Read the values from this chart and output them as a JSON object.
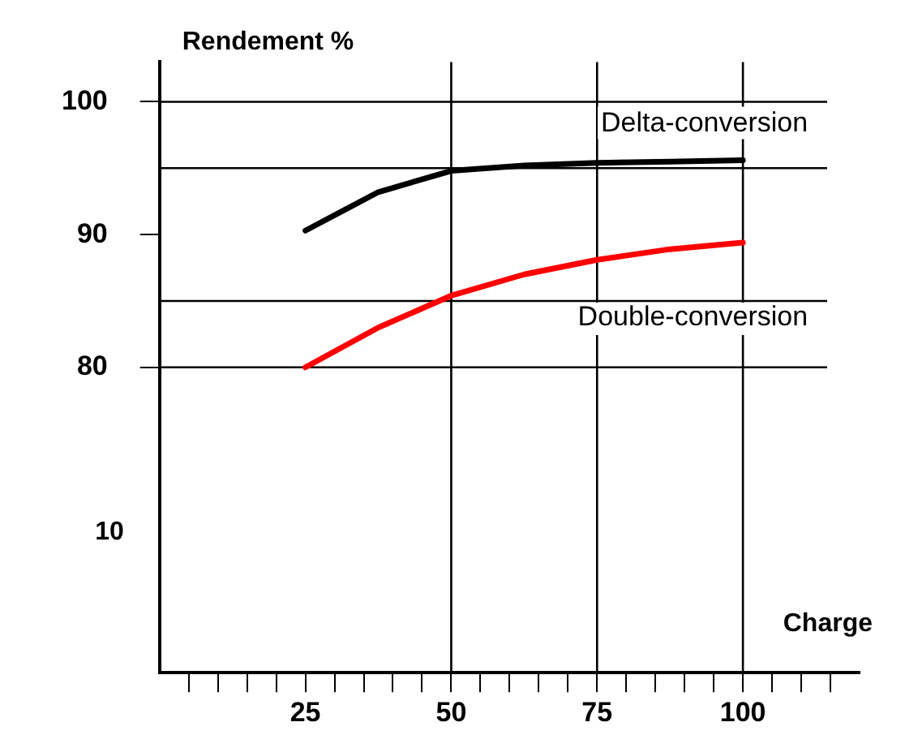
{
  "chart_data": {
    "type": "line",
    "ylabel": "Rendement %",
    "xlabel": "Charge",
    "x": [
      25,
      37.5,
      50,
      62.5,
      75,
      87.5,
      100
    ],
    "series": [
      {
        "name": "Delta-conversion",
        "color": "#000000",
        "values": [
          90.3,
          93.2,
          94.8,
          95.2,
          95.4,
          95.5,
          95.6
        ]
      },
      {
        "name": "Double-conversion",
        "color": "#ff0000",
        "values": [
          80,
          83,
          85.4,
          87,
          88.1,
          88.9,
          89.4
        ]
      }
    ],
    "xlim": [
      0,
      120
    ],
    "xticks": [
      {
        "value": 5,
        "label": null
      },
      {
        "value": 10,
        "label": null
      },
      {
        "value": 15,
        "label": null
      },
      {
        "value": 20,
        "label": null
      },
      25,
      {
        "value": 30,
        "label": null
      },
      {
        "value": 35,
        "label": null
      },
      {
        "value": 40,
        "label": null
      },
      {
        "value": 45,
        "label": null
      },
      50,
      {
        "value": 55,
        "label": null
      },
      {
        "value": 60,
        "label": null
      },
      {
        "value": 65,
        "label": null
      },
      {
        "value": 70,
        "label": null
      },
      75,
      {
        "value": 80,
        "label": null
      },
      {
        "value": 85,
        "label": null
      },
      {
        "value": 90,
        "label": null
      },
      {
        "value": 95,
        "label": null
      },
      100,
      {
        "value": 105,
        "label": null
      },
      {
        "value": 110,
        "label": null
      },
      {
        "value": 115,
        "label": null
      }
    ],
    "ylim": [
      57,
      103
    ],
    "yticks": [
      80,
      90,
      100
    ],
    "ref_lines": [
      {
        "axis": "y",
        "value": 100
      },
      {
        "axis": "y",
        "value": 95
      },
      {
        "axis": "y",
        "value": 85
      },
      {
        "axis": "y",
        "value": 80
      },
      {
        "axis": "x",
        "value": 50
      },
      {
        "axis": "x",
        "value": 75
      },
      {
        "axis": "x",
        "value": 100
      }
    ],
    "annotations": [
      "10"
    ],
    "grid": false,
    "legend": false,
    "marker": "none",
    "line_style": "solid"
  }
}
